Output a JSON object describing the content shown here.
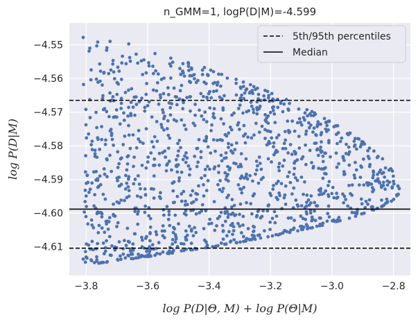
{
  "chart_data": {
    "type": "scatter",
    "title": "n_GMM=1, logP(D|M)=-4.599",
    "xlabel": "log P(D|Θ, M) + log P(Θ|M)",
    "ylabel": "log P(D|M)",
    "xlim": [
      -3.855,
      -2.745
    ],
    "ylim": [
      -4.6185,
      -4.5435
    ],
    "x_ticks": [
      -3.8,
      -3.6,
      -3.4,
      -3.2,
      -3.0,
      -2.8
    ],
    "x_tick_labels": [
      "−3.8",
      "−3.6",
      "−3.4",
      "−3.2",
      "−3.0",
      "−2.8"
    ],
    "y_ticks": [
      -4.61,
      -4.6,
      -4.59,
      -4.58,
      -4.57,
      -4.56,
      -4.55
    ],
    "y_tick_labels": [
      "−4.61",
      "−4.60",
      "−4.59",
      "−4.58",
      "−4.57",
      "−4.56",
      "−4.55"
    ],
    "grid": true,
    "background": "#eaeaf2",
    "point_color": "#4c72b0",
    "hlines": [
      {
        "name": "5th-percentile-line",
        "y": -4.6104,
        "style": "dashed"
      },
      {
        "name": "95th-percentile-line",
        "y": -4.5665,
        "style": "dashed"
      },
      {
        "name": "median-line",
        "y": -4.5988,
        "style": "solid"
      }
    ],
    "legend": {
      "position": "top-right",
      "entries": [
        {
          "label": "5th/95th percentiles",
          "style": "dashed"
        },
        {
          "label": "Median",
          "style": "solid"
        }
      ]
    },
    "scatter_model": {
      "description": "points sampled in a fan-shaped region bounded by upper/lower envelopes",
      "count": 1300,
      "x_range": [
        -3.81,
        -2.78
      ],
      "tip": [
        -2.78,
        -4.5935
      ],
      "upper_at_left": -4.5455,
      "lower_at_left": -4.6155
    }
  }
}
